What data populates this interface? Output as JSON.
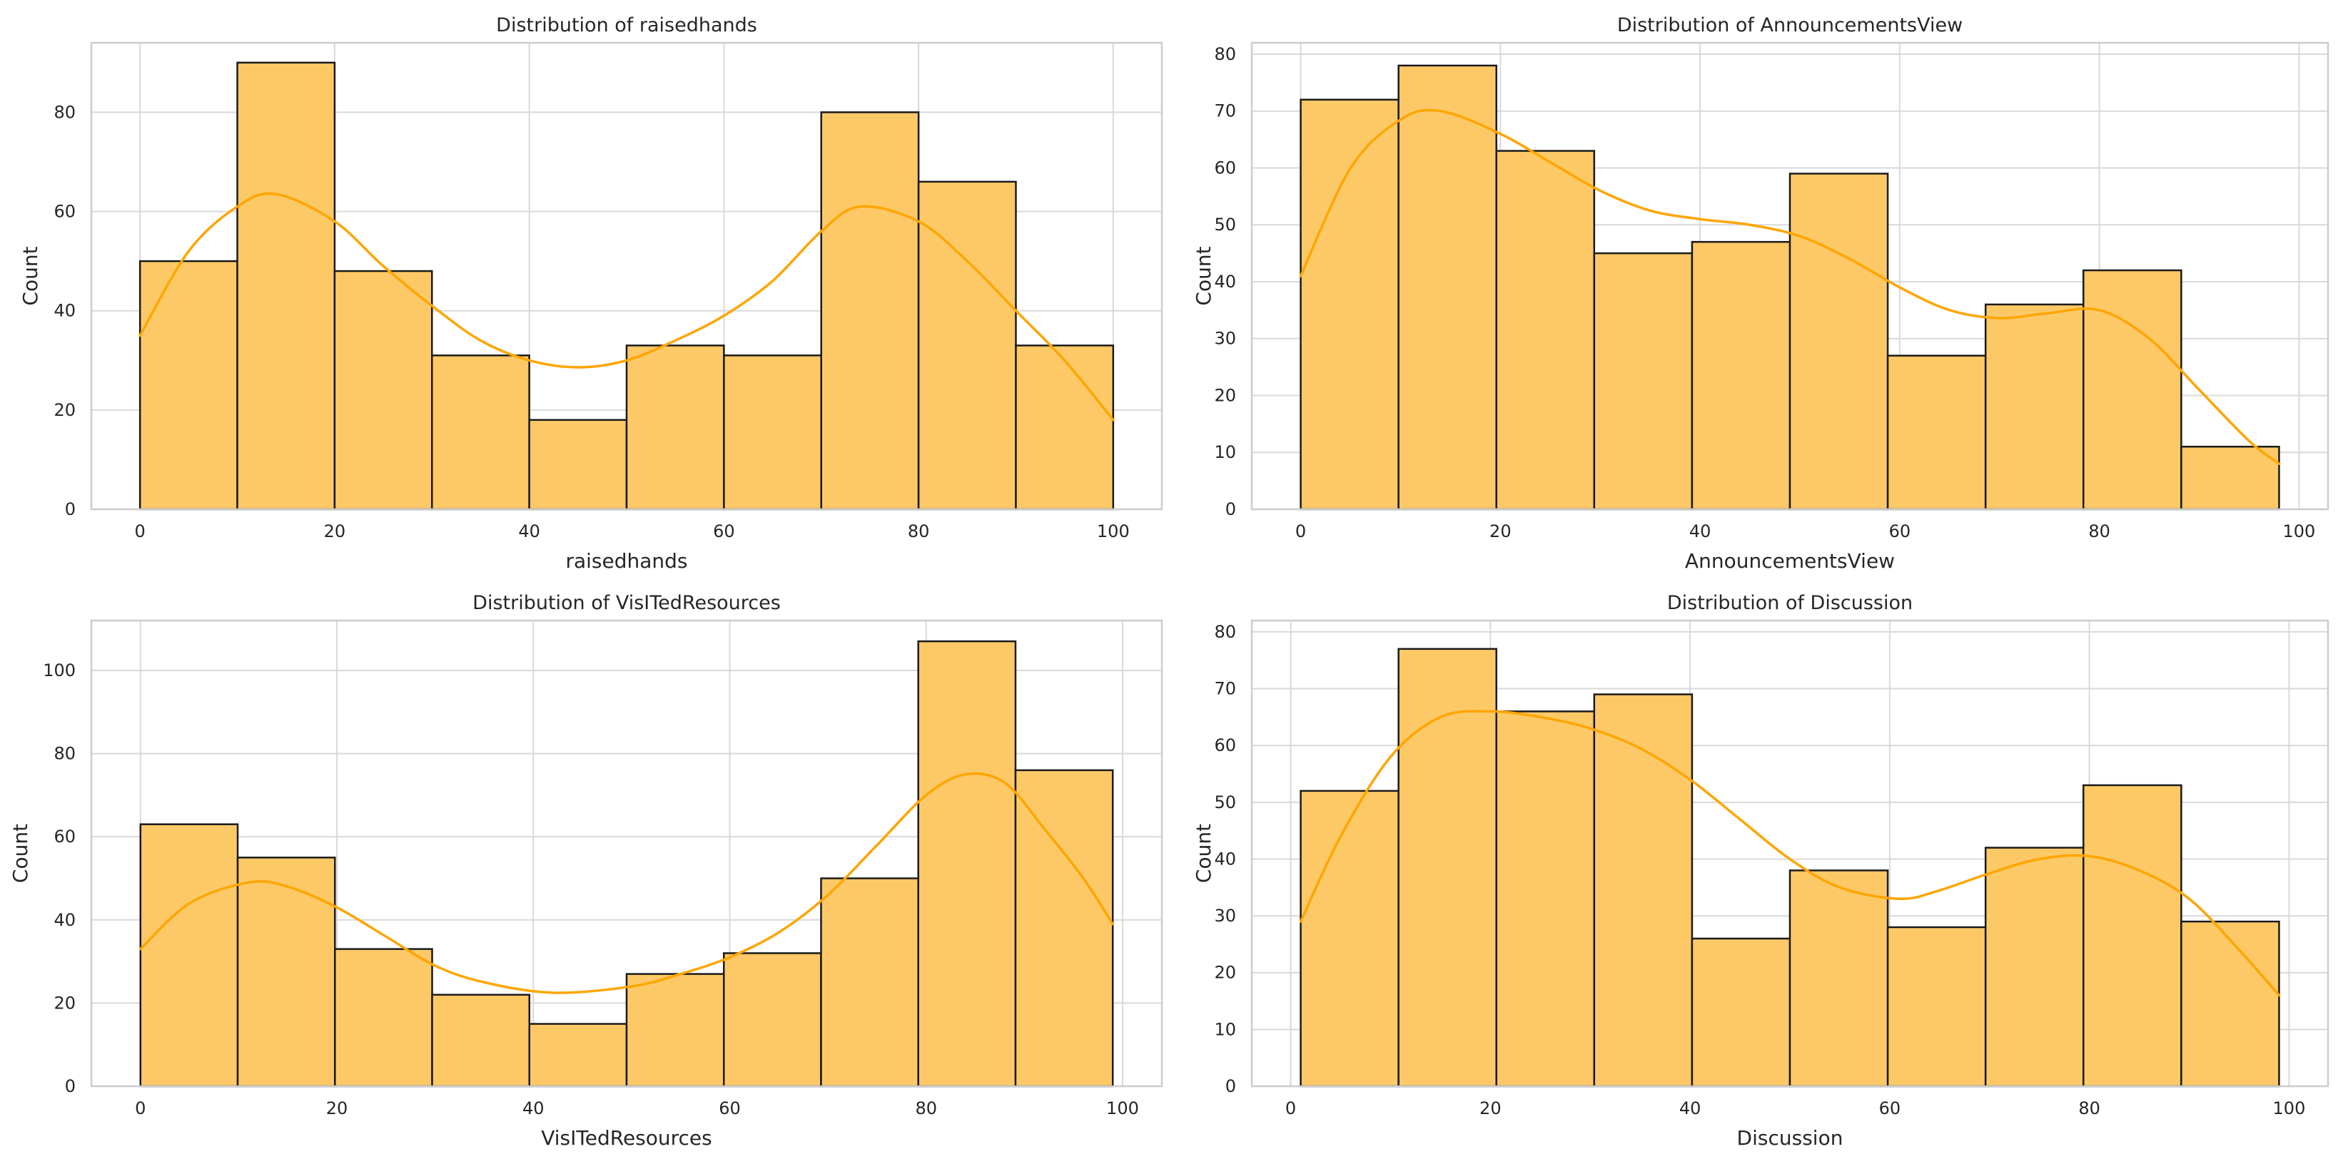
{
  "colors": {
    "bar_fill": "#fdc967",
    "kde": "#ffa500",
    "edge": "#1a1a1a"
  },
  "chart_data": [
    {
      "type": "bar",
      "title": "Distribution of raisedhands",
      "xlabel": "raisedhands",
      "ylabel": "Count",
      "bin_edges": [
        0,
        10,
        20,
        30,
        40,
        50,
        60,
        70,
        80,
        90,
        100
      ],
      "values": [
        50,
        90,
        48,
        31,
        18,
        33,
        31,
        80,
        66,
        33
      ],
      "kde": {
        "x": [
          0,
          5,
          10,
          14,
          20,
          25,
          30,
          35,
          40,
          45,
          50,
          55,
          60,
          65,
          70,
          74,
          80,
          85,
          90,
          95,
          100
        ],
        "y": [
          35,
          52,
          61,
          63.5,
          58,
          49,
          41,
          34,
          30,
          28.6,
          30,
          34,
          39,
          46,
          56,
          61,
          58,
          50,
          40,
          30,
          18
        ]
      },
      "xlim": [
        -5,
        105
      ],
      "ylim": [
        0,
        94
      ],
      "xticks": [
        0,
        20,
        40,
        60,
        80,
        100
      ],
      "yticks": [
        0,
        20,
        40,
        60,
        80
      ],
      "grid": true
    },
    {
      "type": "bar",
      "title": "Distribution of AnnouncementsView",
      "xlabel": "AnnouncementsView",
      "ylabel": "Count",
      "bin_edges": [
        0,
        9.8,
        19.6,
        29.4,
        39.2,
        49,
        58.8,
        68.6,
        78.4,
        88.2,
        98
      ],
      "values": [
        72,
        78,
        63,
        45,
        47,
        59,
        27,
        36,
        42,
        11
      ],
      "kde": {
        "x": [
          0,
          5,
          10,
          14,
          20,
          25,
          30,
          35,
          40,
          45,
          50,
          55,
          60,
          65,
          70,
          75,
          80,
          85,
          90,
          95,
          98
        ],
        "y": [
          41,
          60,
          68.5,
          70,
          66,
          61,
          56,
          52.5,
          51,
          50,
          48,
          44,
          39,
          35,
          33.6,
          34.5,
          35,
          30,
          21,
          12,
          8
        ]
      },
      "xlim": [
        -4.9,
        102.9
      ],
      "ylim": [
        0,
        82
      ],
      "xticks": [
        0,
        20,
        40,
        60,
        80,
        100
      ],
      "yticks": [
        0,
        10,
        20,
        30,
        40,
        50,
        60,
        70,
        80
      ],
      "grid": true
    },
    {
      "type": "bar",
      "title": "Distribution of VisITedResources",
      "xlabel": "VisITedResources",
      "ylabel": "Count",
      "bin_edges": [
        0,
        9.9,
        19.8,
        29.7,
        39.6,
        49.5,
        59.4,
        69.3,
        79.2,
        89.1,
        99
      ],
      "values": [
        63,
        55,
        33,
        22,
        15,
        27,
        32,
        50,
        107,
        76
      ],
      "kde": {
        "x": [
          0,
          5,
          11,
          15,
          20,
          25,
          30,
          35,
          42,
          50,
          55,
          60,
          65,
          70,
          75,
          80,
          84,
          88,
          92,
          96,
          99
        ],
        "y": [
          33,
          44,
          49,
          48,
          43,
          36,
          29,
          25,
          22.5,
          24,
          27,
          31,
          37,
          46,
          58,
          70,
          75,
          73,
          62,
          50,
          39
        ]
      },
      "xlim": [
        -5,
        104
      ],
      "ylim": [
        0,
        112
      ],
      "xticks": [
        0,
        20,
        40,
        60,
        80,
        100
      ],
      "yticks": [
        0,
        20,
        40,
        60,
        80,
        100
      ],
      "grid": true
    },
    {
      "type": "bar",
      "title": "Distribution of Discussion",
      "xlabel": "Discussion",
      "ylabel": "Count",
      "bin_edges": [
        1,
        10.8,
        20.6,
        30.4,
        40.2,
        50,
        59.8,
        69.6,
        79.4,
        89.2,
        99
      ],
      "values": [
        52,
        77,
        66,
        69,
        26,
        38,
        28,
        42,
        53,
        29
      ],
      "kde": {
        "x": [
          1,
          5,
          10,
          15,
          20,
          25,
          30,
          35,
          40,
          45,
          50,
          55,
          61,
          65,
          70,
          75,
          80,
          85,
          90,
          95,
          99
        ],
        "y": [
          29,
          44,
          58,
          65,
          66,
          65,
          63,
          59.5,
          54,
          47,
          40,
          35,
          33,
          34.5,
          37.5,
          40,
          40.5,
          38,
          33,
          24,
          16
        ]
      },
      "xlim": [
        -3.9,
        103.9
      ],
      "ylim": [
        0,
        82
      ],
      "xticks": [
        0,
        20,
        40,
        60,
        80,
        100
      ],
      "yticks": [
        0,
        10,
        20,
        30,
        40,
        50,
        60,
        70,
        80
      ],
      "grid": true
    }
  ]
}
